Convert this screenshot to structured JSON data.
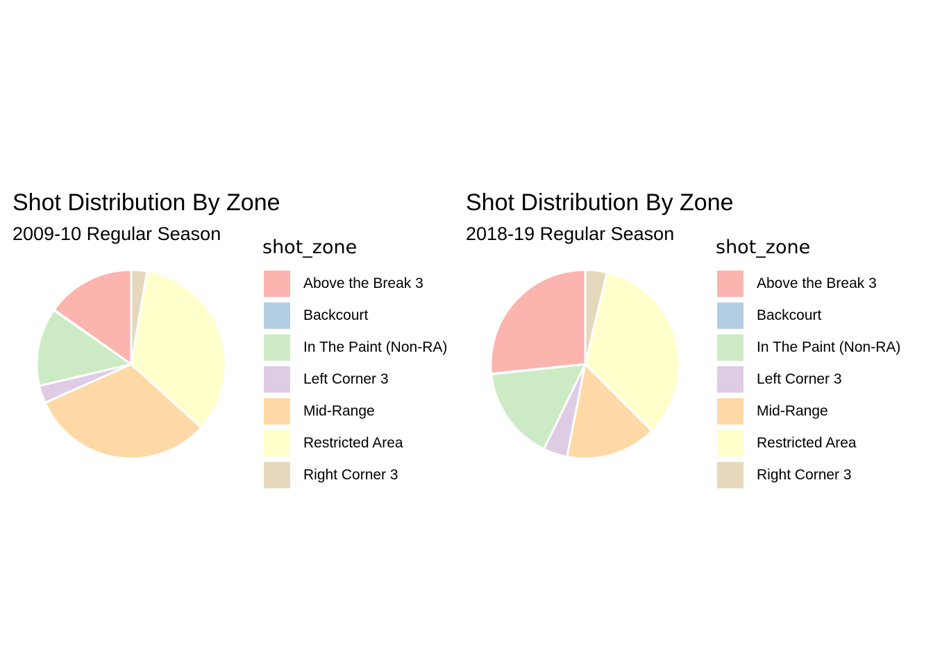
{
  "legend": {
    "title": "shot_zone",
    "categories": [
      "Above the Break 3",
      "Backcourt",
      "In The Paint (Non-RA)",
      "Left Corner 3",
      "Mid-Range",
      "Restricted Area",
      "Right Corner 3"
    ],
    "colors": [
      "#FBB4AE",
      "#B3CDE3",
      "#CCEBC5",
      "#DECBE4",
      "#FED9A6",
      "#FFFFCC",
      "#E5D8BD"
    ]
  },
  "chart_data": [
    {
      "type": "pie",
      "title": "Shot Distribution By Zone",
      "subtitle": "2009-10 Regular Season",
      "legend_title": "shot_zone",
      "legend_position": "right",
      "direction": "counterclockwise from top",
      "categories": [
        "Above the Break 3",
        "Backcourt",
        "In The Paint (Non-RA)",
        "Left Corner 3",
        "Mid-Range",
        "Restricted Area",
        "Right Corner 3"
      ],
      "values": [
        15.2,
        0.1,
        13.4,
        3.0,
        31.6,
        34.0,
        2.7
      ]
    },
    {
      "type": "pie",
      "title": "Shot Distribution By Zone",
      "subtitle": "2018-19 Regular Season",
      "legend_title": "shot_zone",
      "legend_position": "right",
      "direction": "counterclockwise from top",
      "categories": [
        "Above the Break 3",
        "Backcourt",
        "In The Paint (Non-RA)",
        "Left Corner 3",
        "Mid-Range",
        "Restricted Area",
        "Right Corner 3"
      ],
      "values": [
        26.6,
        0.1,
        16.1,
        4.1,
        15.6,
        33.8,
        3.7
      ]
    }
  ]
}
